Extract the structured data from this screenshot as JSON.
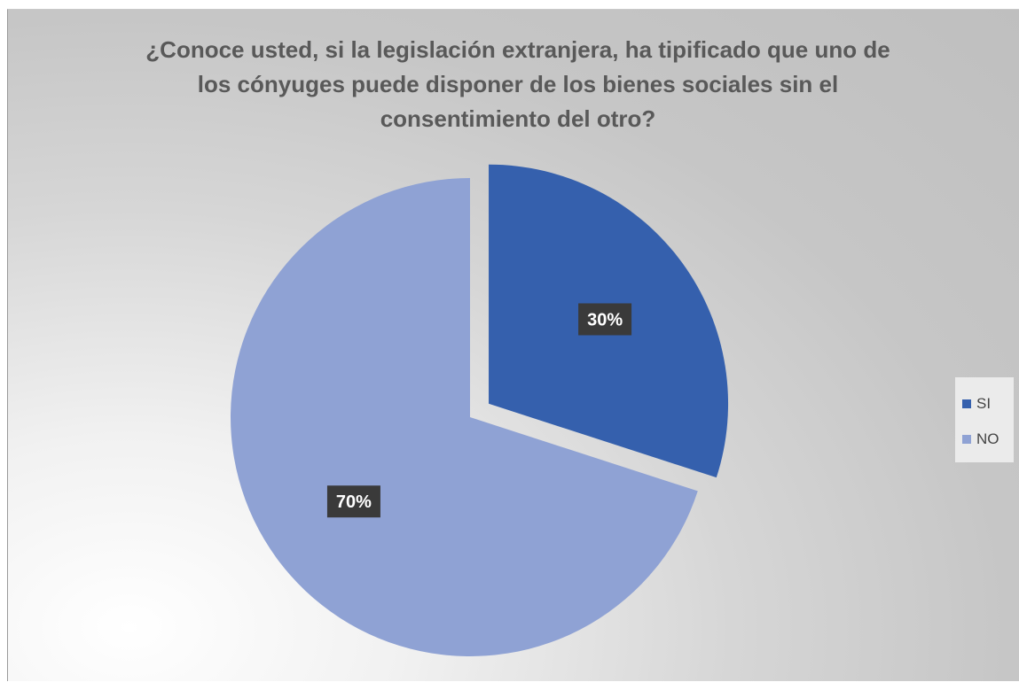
{
  "chart_data": {
    "type": "pie",
    "title": "¿Conoce usted, si la legislación extranjera, ha tipificado que uno de los cónyuges puede disponer de los bienes sociales sin el consentimiento del otro?",
    "title_lines": [
      "¿Conoce usted, si la legislación extranjera, ha tipificado que uno de",
      "los cónyuges puede disponer de los bienes sociales sin el",
      "consentimiento del otro?"
    ],
    "categories": [
      "SI",
      "NO"
    ],
    "values": [
      30,
      70
    ],
    "data_labels": [
      "30%",
      "70%"
    ],
    "colors": [
      "#3560ad",
      "#8fa2d4"
    ],
    "exploded": [
      true,
      false
    ],
    "legend_position": "right"
  }
}
